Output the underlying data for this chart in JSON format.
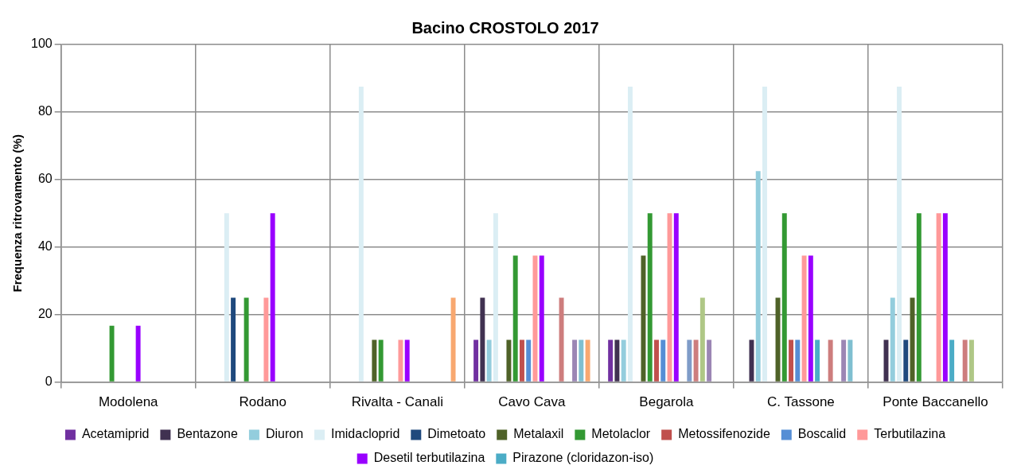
{
  "chart_data": {
    "type": "bar",
    "title": "Bacino CROSTOLO 2017",
    "ylabel": "Frequenza ritrovamento (%)",
    "categories": [
      "Modolena",
      "Rodano",
      "Rivalta - Canali",
      "Cavo Cava",
      "Begarola",
      "C. Tassone",
      "Ponte Baccanello"
    ],
    "ylim": [
      0,
      100
    ],
    "yticks": [
      0,
      20,
      40,
      60,
      80,
      100
    ],
    "grid": true,
    "legend": "bottom",
    "series": [
      {
        "name": "Acetamiprid",
        "color": "#7030a0",
        "values": [
          null,
          null,
          null,
          12.5,
          12.5,
          null,
          null
        ]
      },
      {
        "name": "Bentazone",
        "color": "#403151",
        "values": [
          null,
          null,
          null,
          25,
          12.5,
          12.5,
          12.5
        ]
      },
      {
        "name": "Diuron",
        "color": "#93cddd",
        "values": [
          null,
          null,
          null,
          12.5,
          12.5,
          62.5,
          25
        ]
      },
      {
        "name": "Imidacloprid",
        "color": "#dbeef4",
        "values": [
          null,
          50,
          87.5,
          50,
          87.5,
          87.5,
          87.5
        ]
      },
      {
        "name": "Dimetoato",
        "color": "#1f497d",
        "values": [
          null,
          25,
          null,
          null,
          null,
          null,
          12.5
        ]
      },
      {
        "name": "Metalaxil",
        "color": "#4f6228",
        "values": [
          null,
          null,
          12.5,
          12.5,
          37.5,
          25,
          25
        ]
      },
      {
        "name": "Metolaclor",
        "color": "#339933",
        "values": [
          16.7,
          25,
          12.5,
          37.5,
          50,
          50,
          50
        ]
      },
      {
        "name": "Metossifenozide",
        "color": "#c0504d",
        "values": [
          null,
          null,
          null,
          12.5,
          12.5,
          12.5,
          null
        ]
      },
      {
        "name": "Boscalid",
        "color": "#558ed5",
        "values": [
          null,
          null,
          null,
          12.5,
          12.5,
          12.5,
          null
        ]
      },
      {
        "name": "Terbutilazina",
        "color": "#ff9999",
        "values": [
          null,
          25,
          12.5,
          37.5,
          50,
          37.5,
          50
        ]
      },
      {
        "name": "Desetil terbutilazina",
        "color": "#9900ff",
        "values": [
          16.7,
          50,
          12.5,
          37.5,
          50,
          37.5,
          50
        ]
      },
      {
        "name": "Pirazone (cloridazon-iso)",
        "color": "#4bacc6",
        "values": [
          null,
          null,
          null,
          null,
          null,
          12.5,
          12.5
        ]
      },
      {
        "color": "#7f9cc8",
        "values": [
          null,
          null,
          null,
          null,
          12.5,
          null,
          null
        ]
      },
      {
        "color": "#cd7d7d",
        "values": [
          null,
          null,
          null,
          25,
          12.5,
          12.5,
          12.5
        ]
      },
      {
        "color": "#afc786",
        "values": [
          null,
          null,
          null,
          null,
          25,
          null,
          12.5
        ]
      },
      {
        "color": "#9b86b4",
        "values": [
          null,
          null,
          null,
          12.5,
          12.5,
          12.5,
          null
        ]
      },
      {
        "color": "#7fbfd0",
        "values": [
          null,
          null,
          null,
          12.5,
          null,
          12.5,
          null
        ]
      },
      {
        "color": "#f8a870",
        "values": [
          null,
          null,
          25,
          12.5,
          null,
          null,
          null
        ]
      }
    ]
  }
}
